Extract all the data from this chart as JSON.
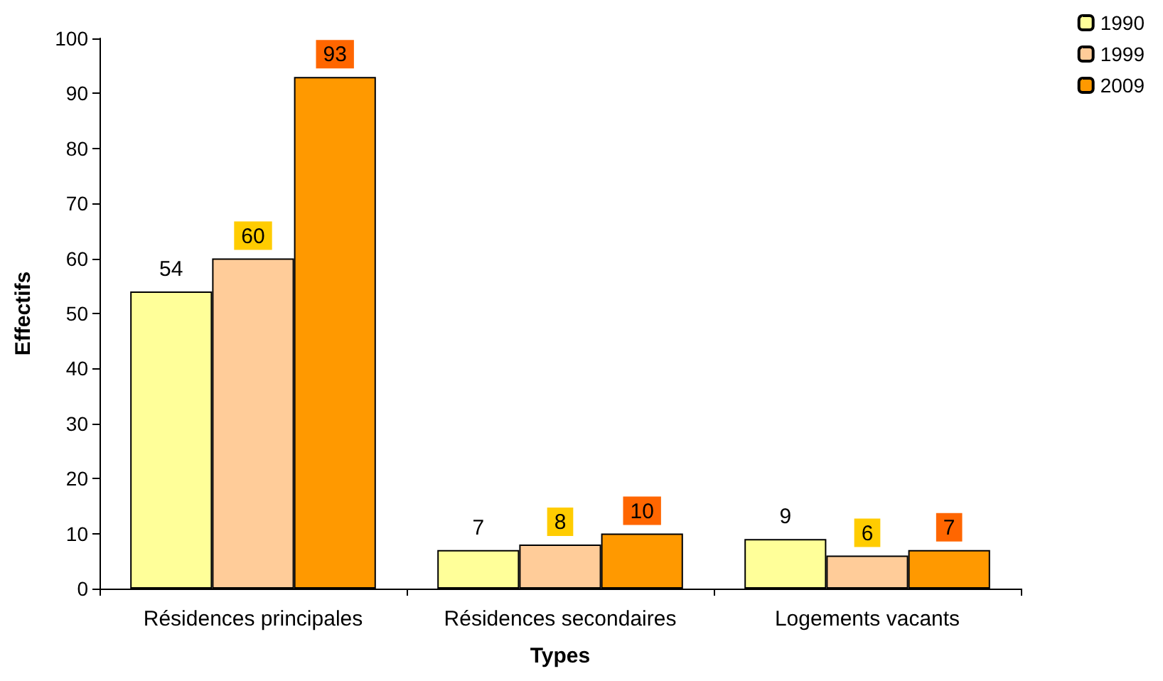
{
  "chart_data": {
    "type": "bar",
    "xlabel": "Types",
    "ylabel": "Effectifs",
    "categories": [
      "Résidences principales",
      "Résidences secondaires",
      "Logements vacants"
    ],
    "series": [
      {
        "name": "1990",
        "color": "#ffff99",
        "values": [
          54,
          7,
          9
        ]
      },
      {
        "name": "1999",
        "color": "#ffcc99",
        "values": [
          60,
          8,
          6
        ]
      },
      {
        "name": "2009",
        "color": "#ff9900",
        "values": [
          93,
          10,
          7
        ]
      }
    ],
    "ylim": [
      0,
      100
    ],
    "yticks": [
      0,
      10,
      20,
      30,
      40,
      50,
      60,
      70,
      80,
      90,
      100
    ],
    "data_labels": true,
    "grid": false,
    "legend": "top right"
  }
}
